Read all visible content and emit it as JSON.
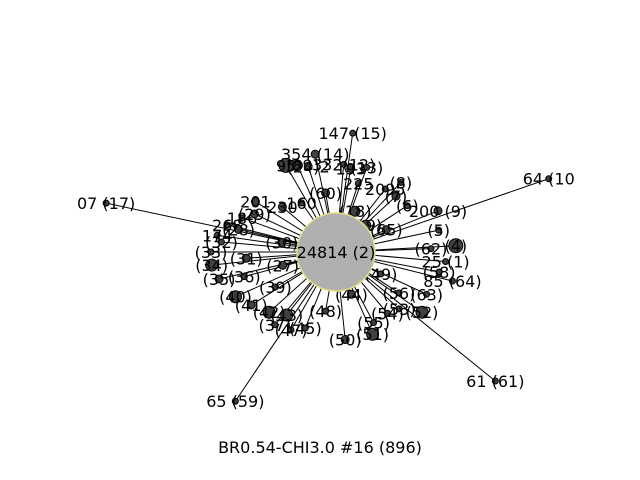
{
  "caption": "BR0.54-CHI3.0 #16 (896)",
  "colors": {
    "edge": "#000000",
    "node": "#404040",
    "hub": "#b0b0b0",
    "hub_ring": "#e0e080"
  },
  "hub": {
    "label": "24814 (2)"
  },
  "nodes": [
    {
      "label": "147 (15)",
      "d": 120,
      "a": -82,
      "r": 3
    },
    {
      "label": "64 (10",
      "d": 225,
      "a": -19,
      "r": 3
    },
    {
      "label": "07 (17)",
      "d": 235,
      "a": -168,
      "r": 3
    },
    {
      "label": "61 (61)",
      "d": 205,
      "a": 39,
      "r": 3
    },
    {
      "label": "65 (59)",
      "d": 180,
      "a": 124,
      "r": 3
    },
    {
      "label": "354 (14)",
      "d": 100,
      "a": -102,
      "r": 4
    },
    {
      "label": "789",
      "d": 95,
      "a": -114,
      "r": 5
    },
    {
      "label": "95",
      "d": 100,
      "a": -120,
      "r": 7
    },
    {
      "label": "(24)2",
      "d": 90,
      "a": -108,
      "r": 4
    },
    {
      "label": "332(12)",
      "d": 88,
      "a": -85,
      "r": 3
    },
    {
      "label": "193",
      "d": 85,
      "a": -80,
      "r": 4
    },
    {
      "label": "(13)",
      "d": 90,
      "a": -70,
      "r": 3
    },
    {
      "label": "225",
      "d": 72,
      "a": -72,
      "r": 3
    },
    {
      "label": "2095",
      "d": 80,
      "a": -52,
      "r": 3
    },
    {
      "label": "(8)",
      "d": 95,
      "a": -47,
      "r": 3
    },
    {
      "label": "201",
      "d": 95,
      "a": -148,
      "r": 4
    },
    {
      "label": "186",
      "d": 100,
      "a": -160,
      "r": 3
    },
    {
      "label": "(29)",
      "d": 90,
      "a": -155,
      "r": 4
    },
    {
      "label": "230",
      "d": 70,
      "a": -140,
      "r": 4
    },
    {
      "label": "160",
      "d": 60,
      "a": -125,
      "r": 3
    },
    {
      "label": "268",
      "d": 112,
      "a": -166,
      "r": 3
    },
    {
      "label": "(28)",
      "d": 100,
      "a": -167,
      "r": 4
    },
    {
      "label": "174",
      "d": 120,
      "a": -172,
      "r": 3
    },
    {
      "label": "(6)",
      "d": 85,
      "a": -33,
      "r": 3
    },
    {
      "label": "(7)",
      "d": 82,
      "a": -43,
      "r": 4
    },
    {
      "label": "200 (9)",
      "d": 110,
      "a": -22,
      "r": 4
    },
    {
      "label": "(5)",
      "d": 105,
      "a": -12,
      "r": 3
    },
    {
      "label": "(4)",
      "d": 120,
      "a": -3,
      "r": 7
    },
    {
      "label": "(62)",
      "d": 95,
      "a": -2,
      "r": 3
    },
    {
      "label": "25 (1)",
      "d": 110,
      "a": 5,
      "r": 3
    },
    {
      "label": "(58)",
      "d": 105,
      "a": 11,
      "r": 3
    },
    {
      "label": "85 (64)",
      "d": 120,
      "a": 14,
      "r": 3
    },
    {
      "label": "(63)",
      "d": 100,
      "a": 25,
      "r": 3
    },
    {
      "label": "(52)",
      "d": 105,
      "a": 35,
      "r": 6
    },
    {
      "label": "(53)",
      "d": 85,
      "a": 42,
      "r": 3
    },
    {
      "label": "(54)",
      "d": 80,
      "a": 50,
      "r": 3
    },
    {
      "label": "(51)",
      "d": 90,
      "a": 66,
      "r": 6
    },
    {
      "label": "(56)",
      "d": 75,
      "a": 33,
      "r": 3
    },
    {
      "label": "(60)",
      "d": 60,
      "a": -100,
      "r": 4
    },
    {
      "label": "(18)",
      "d": 45,
      "a": -65,
      "r": 5
    },
    {
      "label": "(19)",
      "d": 40,
      "a": -42,
      "r": 5
    },
    {
      "label": "(65)",
      "d": 55,
      "a": -24,
      "r": 4
    },
    {
      "label": "(49)",
      "d": 50,
      "a": 26,
      "r": 3
    },
    {
      "label": "(44)",
      "d": 45,
      "a": 70,
      "r": 4
    },
    {
      "label": "(30)",
      "d": 55,
      "a": -170,
      "r": 4
    },
    {
      "label": "(31)",
      "d": 90,
      "a": 176,
      "r": 4
    },
    {
      "label": "(27)",
      "d": 55,
      "a": 166,
      "r": 4
    },
    {
      "label": "(32)",
      "d": 115,
      "a": -175,
      "r": 3
    },
    {
      "label": "(33)",
      "d": 125,
      "a": 180,
      "r": 3
    },
    {
      "label": "(34)",
      "d": 125,
      "a": 174,
      "r": 6
    },
    {
      "label": "(35)",
      "d": 120,
      "a": 167,
      "r": 4
    },
    {
      "label": "(36)",
      "d": 95,
      "a": 165,
      "r": 3
    },
    {
      "label": "(40)",
      "d": 110,
      "a": 156,
      "r": 6
    },
    {
      "label": "(39)",
      "d": 70,
      "a": 150,
      "r": 3
    },
    {
      "label": "(41)",
      "d": 100,
      "a": 148,
      "r": 4
    },
    {
      "label": "(42)",
      "d": 90,
      "a": 138,
      "r": 6
    },
    {
      "label": "(43)",
      "d": 80,
      "a": 128,
      "r": 6
    },
    {
      "label": "(37)",
      "d": 95,
      "a": 130,
      "r": 3
    },
    {
      "label": "(47)",
      "d": 90,
      "a": 120,
      "r": 3
    },
    {
      "label": "(45)",
      "d": 82,
      "a": 112,
      "r": 3
    },
    {
      "label": "(48)",
      "d": 60,
      "a": 100,
      "r": 3
    },
    {
      "label": "(50)",
      "d": 88,
      "a": 84,
      "r": 4
    },
    {
      "label": "(55)",
      "d": 80,
      "a": 62,
      "r": 3
    }
  ]
}
